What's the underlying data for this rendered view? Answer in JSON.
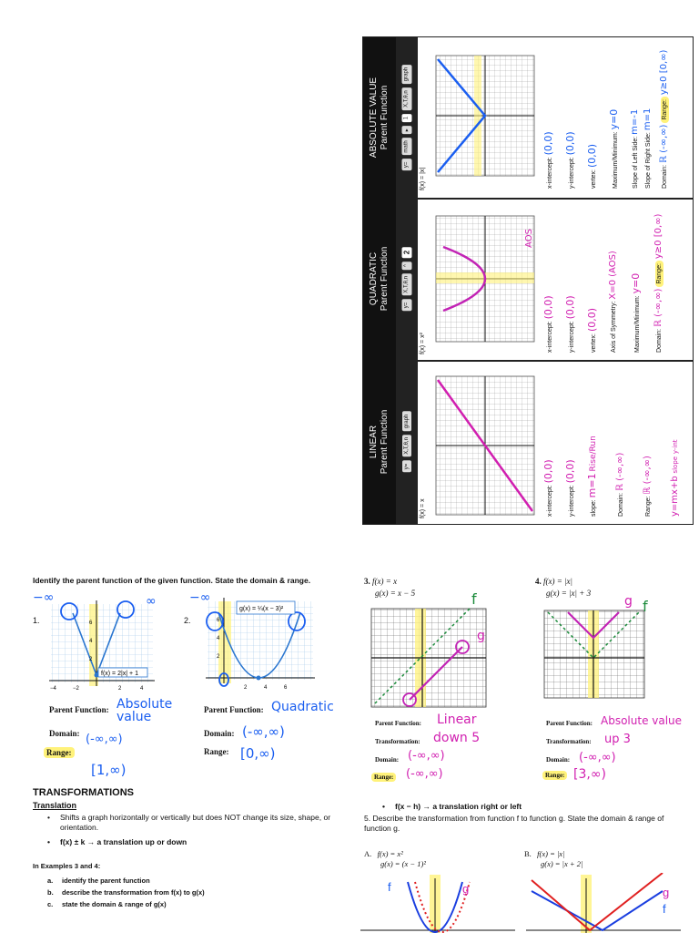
{
  "top_panel": {
    "sections": [
      {
        "title": "LINEAR",
        "subtitle": "Parent Function",
        "keys": [
          "y=",
          "X,T,θ,n",
          "graph"
        ],
        "fn": "f(x) = x",
        "rows": [
          {
            "label": "x-intercept:",
            "answer": "(0,0)"
          },
          {
            "label": "y-intercept:",
            "answer": "(0,0)"
          },
          {
            "label": "slope:",
            "answer": "m=1"
          },
          {
            "label": "Domain:",
            "answer": "ℝ (-∞,∞)"
          },
          {
            "label": "Range:",
            "answer": "ℝ (-∞,∞)"
          }
        ],
        "note1": "y=mx+b",
        "note2": "slope",
        "note3": "y-int",
        "note4": "Rise/Run"
      },
      {
        "title": "QUADRATIC",
        "subtitle": "Parent Function",
        "keys": [
          "y=",
          "X,T,θ,n",
          "^",
          "2"
        ],
        "fn": "f(x) = x²",
        "rows": [
          {
            "label": "x-intercept:",
            "answer": "(0,0)"
          },
          {
            "label": "y-intercept:",
            "answer": "(0,0)"
          },
          {
            "label": "vertex:",
            "answer": "(0,0)"
          },
          {
            "label": "Axis of Symmetry:",
            "answer": "X=0 (AOS)"
          },
          {
            "label": "Maximum/Minimum:",
            "answer": "y=0"
          },
          {
            "label": "Domain:",
            "answer": "ℝ (-∞,∞)"
          },
          {
            "label": "Range:",
            "answer": "y≥0 [0,∞)"
          }
        ],
        "note1": "AOS"
      },
      {
        "title": "ABSOLUTE VALUE",
        "subtitle": "Parent Function",
        "keys": [
          "y=",
          "math",
          "▸",
          "1",
          "X,T,θ,n",
          "graph"
        ],
        "fn": "f(x) = |x|",
        "rows": [
          {
            "label": "x-intercept:",
            "answer": "(0,0)"
          },
          {
            "label": "y-intercept:",
            "answer": "(0,0)"
          },
          {
            "label": "vertex:",
            "answer": "(0,0)"
          },
          {
            "label": "Maximum/Minimum:",
            "answer": "y=0"
          },
          {
            "label": "Slope of Left Side:",
            "answer": "m=-1"
          },
          {
            "label": "Slope of Right Side:",
            "answer": "m=1"
          },
          {
            "label": "Domain:",
            "answer": "ℝ (-∞,∞)"
          },
          {
            "label": "Range:",
            "answer": "y≥0 [0,∞)"
          }
        ]
      }
    ]
  },
  "left": {
    "heading": "Identify the parent function of the given function. State the domain & range.",
    "p1": {
      "num": "1.",
      "eq": "f(x) = 2|x| + 1",
      "pf_label": "Parent Function:",
      "pf_ans": "Absolute value",
      "dom_label": "Domain:",
      "dom_ans": "(-∞,∞)",
      "rng_label": "Range:",
      "rng_ans": "[1,∞)",
      "ticks": [
        "−4",
        "−2",
        "2",
        "4"
      ],
      "yticks": [
        "6",
        "4",
        "2"
      ]
    },
    "p2": {
      "num": "2.",
      "eq": "g(x) = ¼(x − 3)²",
      "pf_label": "Parent Function:",
      "pf_ans": "Quadratic",
      "dom_label": "Domain:",
      "dom_ans": "(-∞,∞)",
      "rng_label": "Range:",
      "rng_ans": "[0,∞)",
      "ticks": [
        "2",
        "4",
        "6"
      ],
      "yticks": [
        "6",
        "4",
        "2"
      ]
    },
    "trans_title": "TRANSFORMATIONS",
    "translation": "Translation",
    "bullet1": "Shifts a graph horizontally or vertically but does NOT change its size, shape, or orientation.",
    "bullet2": "f(x) ± k → a translation up or down",
    "examples_title": "In Examples 3 and 4:",
    "steps": [
      {
        "k": "a.",
        "t": "identify the parent function"
      },
      {
        "k": "b.",
        "t": "describe the transformation from f(x) to g(x)"
      },
      {
        "k": "c.",
        "t": "state the domain & range of g(x)"
      }
    ]
  },
  "right": {
    "p3": {
      "num": "3.",
      "f": "f(x) = x",
      "g": "g(x) = x − 5",
      "pf_label": "Parent Function:",
      "pf_ans": "Linear",
      "tr_label": "Transformation:",
      "tr_ans": "down 5",
      "dom_label": "Domain:",
      "dom_ans": "(-∞,∞)",
      "rng_label": "Range:",
      "rng_ans": "(-∞,∞)"
    },
    "p4": {
      "num": "4.",
      "f": "f(x) = |x|",
      "g": "g(x) = |x| + 3",
      "pf_label": "Parent Function:",
      "pf_ans": "Absolute value",
      "tr_label": "Transformation:",
      "tr_ans": "up 3",
      "dom_label": "Domain:",
      "dom_ans": "(-∞,∞)",
      "rng_label": "Range:",
      "rng_ans": "[3,∞)"
    },
    "bullet3": "f(x − h) → a translation right or left",
    "q5": "5. Describe the transformation from function f to function g. State the domain & range of function g.",
    "pA": {
      "label": "A.",
      "f": "f(x) = x²",
      "g": "g(x) = (x − 1)²"
    },
    "pB": {
      "label": "B.",
      "f": "f(x) = |x|",
      "g": "g(x) = |x + 2|"
    }
  },
  "colors": {
    "pen_blue": "#1a5ef0",
    "pen_magenta": "#d11fb0",
    "highlight": "#fff27a",
    "green": "#1a8a3a",
    "red": "#e02020"
  }
}
